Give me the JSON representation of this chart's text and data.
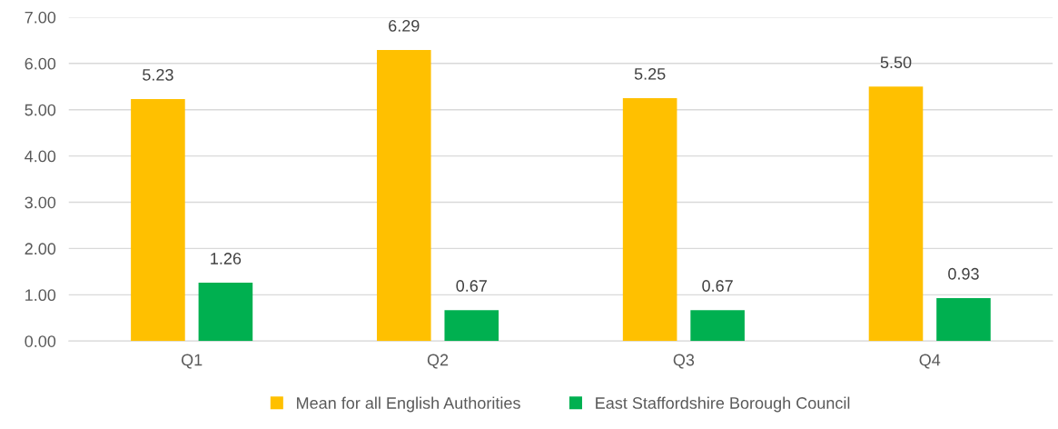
{
  "chart_data": {
    "type": "bar",
    "categories": [
      "Q1",
      "Q2",
      "Q3",
      "Q4"
    ],
    "series": [
      {
        "name": "Mean for all English Authorities",
        "color": "#ffc000",
        "values": [
          5.23,
          6.29,
          5.25,
          5.5
        ],
        "value_labels": [
          "5.23",
          "6.29",
          "5.25",
          "5.50"
        ]
      },
      {
        "name": "East Staffordshire Borough Council",
        "color": "#00b050",
        "values": [
          1.26,
          0.67,
          0.67,
          0.93
        ],
        "value_labels": [
          "1.26",
          "0.67",
          "0.67",
          "0.93"
        ]
      }
    ],
    "ylim": [
      0,
      7
    ],
    "yticks": [
      {
        "value": 0,
        "label": "0.00"
      },
      {
        "value": 1,
        "label": "1.00"
      },
      {
        "value": 2,
        "label": "2.00"
      },
      {
        "value": 3,
        "label": "3.00"
      },
      {
        "value": 4,
        "label": "4.00"
      },
      {
        "value": 5,
        "label": "5.00"
      },
      {
        "value": 6,
        "label": "6.00"
      },
      {
        "value": 7,
        "label": "7.00"
      }
    ],
    "grid": "y",
    "legend": "bottom"
  }
}
